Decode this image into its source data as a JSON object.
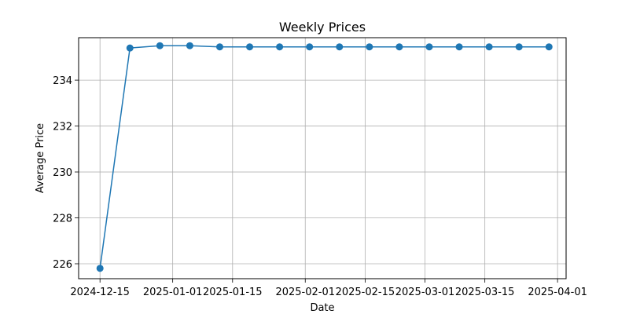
{
  "chart_data": {
    "type": "line",
    "title": "Weekly Prices",
    "xlabel": "Date",
    "ylabel": "Average Price",
    "grid": true,
    "xlim": [
      "2024-12-10",
      "2025-04-03"
    ],
    "ylim": [
      225.35,
      235.85
    ],
    "x_ticks": [
      "2024-12-15",
      "2025-01-01",
      "2025-01-15",
      "2025-02-01",
      "2025-02-15",
      "2025-03-01",
      "2025-03-15",
      "2025-04-01"
    ],
    "y_ticks": [
      226,
      228,
      230,
      232,
      234
    ],
    "series": [
      {
        "color": "#1f77b4",
        "marker": "circle",
        "points": [
          {
            "x": "2024-12-15",
            "y": 225.8
          },
          {
            "x": "2024-12-22",
            "y": 235.4
          },
          {
            "x": "2024-12-29",
            "y": 235.5
          },
          {
            "x": "2025-01-05",
            "y": 235.5
          },
          {
            "x": "2025-01-12",
            "y": 235.45
          },
          {
            "x": "2025-01-19",
            "y": 235.45
          },
          {
            "x": "2025-01-26",
            "y": 235.45
          },
          {
            "x": "2025-02-02",
            "y": 235.45
          },
          {
            "x": "2025-02-09",
            "y": 235.45
          },
          {
            "x": "2025-02-16",
            "y": 235.45
          },
          {
            "x": "2025-02-23",
            "y": 235.45
          },
          {
            "x": "2025-03-02",
            "y": 235.45
          },
          {
            "x": "2025-03-09",
            "y": 235.45
          },
          {
            "x": "2025-03-16",
            "y": 235.45
          },
          {
            "x": "2025-03-23",
            "y": 235.45
          },
          {
            "x": "2025-03-30",
            "y": 235.45
          }
        ]
      }
    ]
  }
}
